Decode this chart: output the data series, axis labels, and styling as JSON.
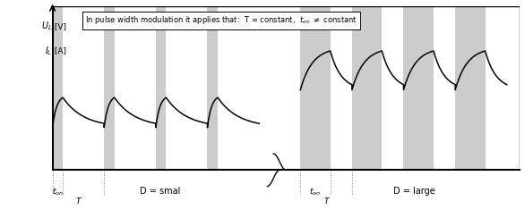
{
  "pulse_color": "#cccccc",
  "plot_bg": "#ffffff",
  "small_duty": 0.2,
  "large_duty": 0.58,
  "n_small": 4,
  "n_large": 4,
  "period": 1.0,
  "small_mean": 0.36,
  "small_ripple": 0.2,
  "large_mean": 0.62,
  "large_ripple": 0.26,
  "title_str": "In pulse width modulation it applies that:  T = constant,  t",
  "ton_str": "on",
  "neq_str": " ≠ constant",
  "ylabel1": "U",
  "ylabel1s": "L",
  "ylabel1u": " [V]",
  "ylabel2": "I",
  "ylabel2s": "L",
  "ylabel2u": " [A]",
  "label_D_small": "D = smal",
  "label_D_large": "D = large",
  "label_t": "t"
}
